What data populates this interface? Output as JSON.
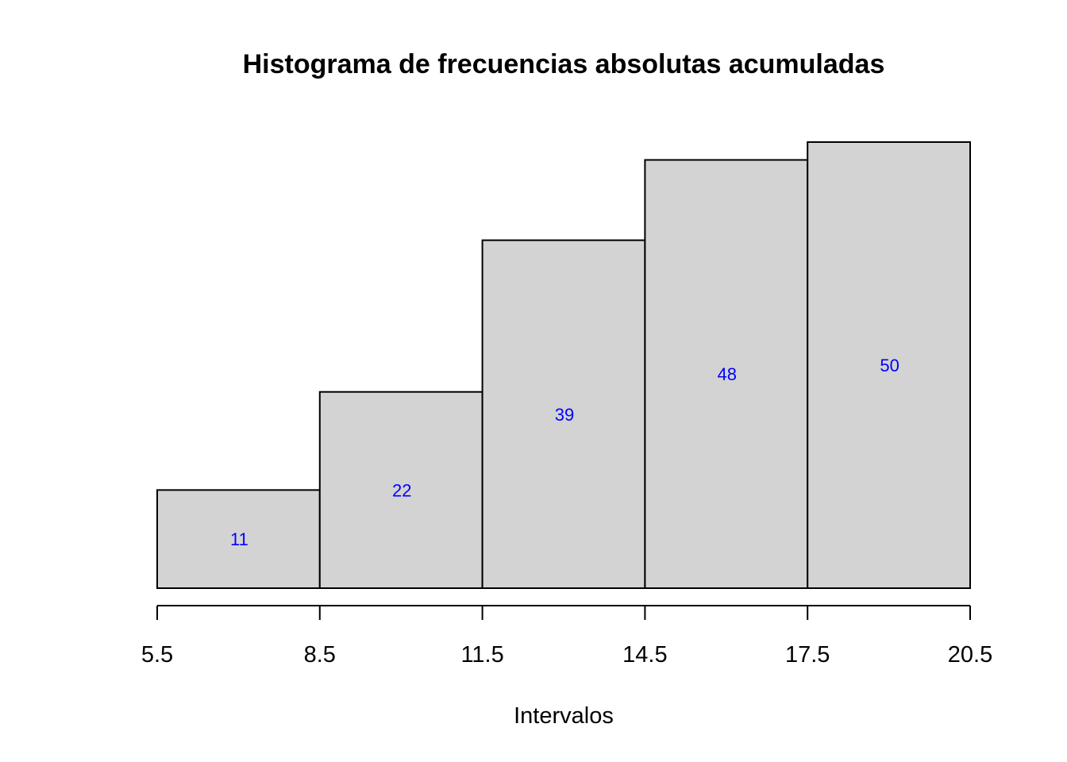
{
  "chart_data": {
    "type": "bar",
    "title": "Histograma de frecuencias absolutas acumuladas",
    "xlabel": "Intervalos",
    "ylabel": "",
    "breaks": [
      5.5,
      8.5,
      11.5,
      14.5,
      17.5,
      20.5
    ],
    "tick_labels": [
      "5.5",
      "8.5",
      "11.5",
      "14.5",
      "17.5",
      "20.5"
    ],
    "values": [
      11,
      22,
      39,
      48,
      50
    ],
    "data_labels": [
      "11",
      "22",
      "39",
      "48",
      "50"
    ],
    "xlim": [
      5.5,
      20.5
    ],
    "ylim": [
      0,
      50
    ],
    "grid": false,
    "legend": "none",
    "colors": {
      "bar_fill": "#d3d3d3",
      "bar_stroke": "#000000",
      "label": "#0000ff"
    }
  }
}
